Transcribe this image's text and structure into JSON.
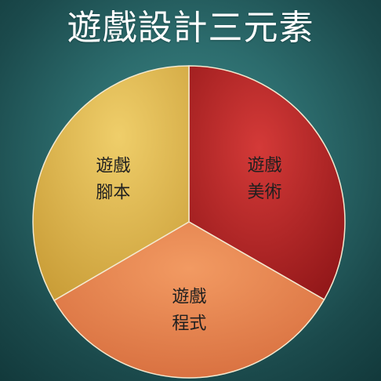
{
  "chart_data": {
    "type": "pie",
    "title": "遊戲設計三元素",
    "slices": [
      {
        "label_lines": [
          "遊戲",
          "美術"
        ],
        "value": 33.3,
        "color": "#c0262a"
      },
      {
        "label_lines": [
          "遊戲",
          "程式"
        ],
        "value": 33.3,
        "color": "#e9834d"
      },
      {
        "label_lines": [
          "遊戲",
          "腳本"
        ],
        "value": 33.4,
        "color": "#e1b94d"
      }
    ],
    "legend": "none",
    "grid": false
  }
}
